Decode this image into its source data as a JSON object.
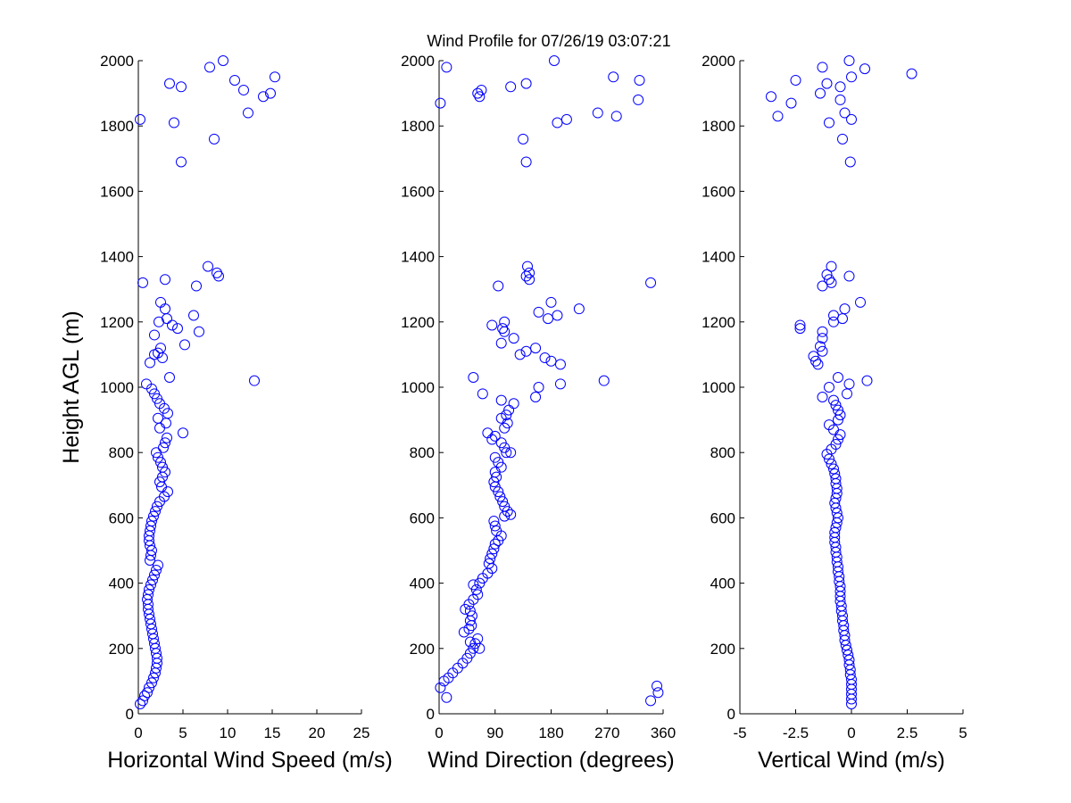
{
  "title": "Wind Profile for  07/26/19 03:07:21",
  "chart_data": [
    {
      "type": "scatter",
      "xlabel": "Horizontal Wind Speed (m/s)",
      "ylabel": "Height AGL (m)",
      "xlim": [
        0,
        25
      ],
      "ylim": [
        0,
        2000
      ],
      "xticks": [
        0,
        5,
        10,
        15,
        20,
        25
      ],
      "xtick_labels": [
        "0",
        "5",
        "10",
        "15",
        "20",
        "25"
      ],
      "yticks": [
        0,
        200,
        400,
        600,
        800,
        1000,
        1200,
        1400,
        1600,
        1800,
        2000
      ],
      "ytick_labels": [
        "0",
        "200",
        "400",
        "600",
        "800",
        "1000",
        "1200",
        "1400",
        "1600",
        "1800",
        "2000"
      ],
      "points": [
        [
          0.2,
          30
        ],
        [
          0.5,
          40
        ],
        [
          0.7,
          55
        ],
        [
          1.0,
          65
        ],
        [
          1.2,
          80
        ],
        [
          1.5,
          95
        ],
        [
          1.7,
          110
        ],
        [
          1.9,
          125
        ],
        [
          2.0,
          140
        ],
        [
          2.1,
          155
        ],
        [
          2.1,
          170
        ],
        [
          2.0,
          185
        ],
        [
          1.9,
          200
        ],
        [
          1.8,
          215
        ],
        [
          1.7,
          230
        ],
        [
          1.6,
          245
        ],
        [
          1.5,
          260
        ],
        [
          1.4,
          275
        ],
        [
          1.3,
          290
        ],
        [
          1.2,
          305
        ],
        [
          1.1,
          320
        ],
        [
          1.1,
          335
        ],
        [
          1.0,
          350
        ],
        [
          1.1,
          365
        ],
        [
          1.2,
          380
        ],
        [
          1.4,
          395
        ],
        [
          1.6,
          410
        ],
        [
          1.8,
          425
        ],
        [
          2.0,
          440
        ],
        [
          2.2,
          455
        ],
        [
          1.3,
          470
        ],
        [
          1.4,
          485
        ],
        [
          1.5,
          500
        ],
        [
          1.3,
          515
        ],
        [
          1.2,
          530
        ],
        [
          1.2,
          545
        ],
        [
          1.3,
          560
        ],
        [
          1.4,
          575
        ],
        [
          1.5,
          590
        ],
        [
          1.7,
          605
        ],
        [
          1.9,
          620
        ],
        [
          2.1,
          635
        ],
        [
          2.4,
          650
        ],
        [
          2.9,
          665
        ],
        [
          3.3,
          680
        ],
        [
          2.6,
          695
        ],
        [
          2.4,
          710
        ],
        [
          2.7,
          725
        ],
        [
          3.0,
          740
        ],
        [
          2.7,
          755
        ],
        [
          2.5,
          770
        ],
        [
          2.2,
          785
        ],
        [
          2.0,
          800
        ],
        [
          2.8,
          815
        ],
        [
          3.0,
          830
        ],
        [
          3.2,
          845
        ],
        [
          5.0,
          860
        ],
        [
          2.4,
          875
        ],
        [
          3.1,
          890
        ],
        [
          2.2,
          905
        ],
        [
          3.3,
          920
        ],
        [
          2.9,
          935
        ],
        [
          2.4,
          950
        ],
        [
          2.1,
          965
        ],
        [
          1.8,
          980
        ],
        [
          1.5,
          995
        ],
        [
          0.9,
          1010
        ],
        [
          3.5,
          1030
        ],
        [
          13.0,
          1020
        ],
        [
          2.7,
          1090
        ],
        [
          1.3,
          1075
        ],
        [
          2.2,
          1105
        ],
        [
          1.8,
          1100
        ],
        [
          2.5,
          1120
        ],
        [
          5.2,
          1130
        ],
        [
          1.8,
          1160
        ],
        [
          6.8,
          1170
        ],
        [
          4.4,
          1180
        ],
        [
          3.8,
          1190
        ],
        [
          2.3,
          1200
        ],
        [
          3.2,
          1210
        ],
        [
          6.2,
          1220
        ],
        [
          3.0,
          1240
        ],
        [
          2.5,
          1260
        ],
        [
          6.5,
          1310
        ],
        [
          0.5,
          1320
        ],
        [
          3.0,
          1330
        ],
        [
          9.0,
          1340
        ],
        [
          8.8,
          1350
        ],
        [
          7.8,
          1370
        ],
        [
          4.8,
          1690
        ],
        [
          8.5,
          1760
        ],
        [
          4.0,
          1810
        ],
        [
          0.2,
          1820
        ],
        [
          12.3,
          1840
        ],
        [
          14.0,
          1890
        ],
        [
          14.8,
          1900
        ],
        [
          11.8,
          1910
        ],
        [
          4.8,
          1920
        ],
        [
          3.5,
          1930
        ],
        [
          10.8,
          1940
        ],
        [
          15.3,
          1950
        ],
        [
          8.0,
          1980
        ],
        [
          9.5,
          2000
        ]
      ]
    },
    {
      "type": "scatter",
      "xlabel": "Wind Direction (degrees)",
      "ylabel": "",
      "xlim": [
        0,
        360
      ],
      "ylim": [
        0,
        2000
      ],
      "xticks": [
        0,
        90,
        180,
        270,
        360
      ],
      "xtick_labels": [
        "0",
        "90",
        "180",
        "270",
        "360"
      ],
      "yticks": [
        0,
        200,
        400,
        600,
        800,
        1000,
        1200,
        1400,
        1600,
        1800,
        2000
      ],
      "ytick_labels": [
        "0",
        "200",
        "400",
        "600",
        "800",
        "1000",
        "1200",
        "1400",
        "1600",
        "1800",
        "2000"
      ],
      "points": [
        [
          12,
          50
        ],
        [
          2,
          80
        ],
        [
          340,
          40
        ],
        [
          352,
          65
        ],
        [
          350,
          85
        ],
        [
          8,
          100
        ],
        [
          15,
          110
        ],
        [
          22,
          125
        ],
        [
          30,
          140
        ],
        [
          38,
          155
        ],
        [
          45,
          170
        ],
        [
          50,
          185
        ],
        [
          55,
          200
        ],
        [
          65,
          200
        ],
        [
          58,
          215
        ],
        [
          50,
          220
        ],
        [
          62,
          230
        ],
        [
          40,
          250
        ],
        [
          48,
          260
        ],
        [
          52,
          270
        ],
        [
          50,
          285
        ],
        [
          53,
          300
        ],
        [
          50,
          315
        ],
        [
          42,
          320
        ],
        [
          48,
          335
        ],
        [
          55,
          350
        ],
        [
          62,
          365
        ],
        [
          60,
          380
        ],
        [
          55,
          395
        ],
        [
          65,
          400
        ],
        [
          70,
          415
        ],
        [
          78,
          430
        ],
        [
          85,
          445
        ],
        [
          80,
          460
        ],
        [
          82,
          475
        ],
        [
          85,
          490
        ],
        [
          88,
          505
        ],
        [
          90,
          520
        ],
        [
          95,
          530
        ],
        [
          100,
          545
        ],
        [
          92,
          560
        ],
        [
          90,
          575
        ],
        [
          88,
          590
        ],
        [
          105,
          605
        ],
        [
          115,
          610
        ],
        [
          110,
          620
        ],
        [
          105,
          635
        ],
        [
          102,
          650
        ],
        [
          98,
          665
        ],
        [
          95,
          680
        ],
        [
          90,
          695
        ],
        [
          88,
          710
        ],
        [
          92,
          725
        ],
        [
          90,
          740
        ],
        [
          100,
          755
        ],
        [
          95,
          770
        ],
        [
          90,
          785
        ],
        [
          108,
          800
        ],
        [
          115,
          800
        ],
        [
          105,
          815
        ],
        [
          100,
          830
        ],
        [
          85,
          840
        ],
        [
          90,
          850
        ],
        [
          78,
          860
        ],
        [
          105,
          875
        ],
        [
          110,
          890
        ],
        [
          100,
          905
        ],
        [
          108,
          915
        ],
        [
          112,
          930
        ],
        [
          120,
          950
        ],
        [
          100,
          960
        ],
        [
          70,
          980
        ],
        [
          155,
          970
        ],
        [
          160,
          1000
        ],
        [
          195,
          1010
        ],
        [
          55,
          1030
        ],
        [
          265,
          1020
        ],
        [
          195,
          1070
        ],
        [
          180,
          1080
        ],
        [
          170,
          1090
        ],
        [
          130,
          1100
        ],
        [
          140,
          1110
        ],
        [
          155,
          1120
        ],
        [
          100,
          1135
        ],
        [
          120,
          1150
        ],
        [
          105,
          1170
        ],
        [
          102,
          1180
        ],
        [
          85,
          1190
        ],
        [
          105,
          1200
        ],
        [
          175,
          1210
        ],
        [
          190,
          1220
        ],
        [
          160,
          1230
        ],
        [
          225,
          1240
        ],
        [
          180,
          1260
        ],
        [
          95,
          1310
        ],
        [
          340,
          1320
        ],
        [
          145,
          1330
        ],
        [
          140,
          1340
        ],
        [
          145,
          1350
        ],
        [
          142,
          1370
        ],
        [
          140,
          1690
        ],
        [
          135,
          1760
        ],
        [
          190,
          1810
        ],
        [
          205,
          1820
        ],
        [
          255,
          1840
        ],
        [
          285,
          1830
        ],
        [
          2,
          1870
        ],
        [
          320,
          1880
        ],
        [
          65,
          1890
        ],
        [
          62,
          1900
        ],
        [
          68,
          1910
        ],
        [
          115,
          1920
        ],
        [
          140,
          1930
        ],
        [
          322,
          1940
        ],
        [
          280,
          1950
        ],
        [
          12,
          1980
        ],
        [
          185,
          2000
        ]
      ]
    },
    {
      "type": "scatter",
      "xlabel": "Vertical Wind (m/s)",
      "ylabel": "",
      "xlim": [
        -5,
        5
      ],
      "ylim": [
        0,
        2000
      ],
      "xticks": [
        -5,
        -2.5,
        0,
        2.5,
        5
      ],
      "xtick_labels": [
        "-5",
        "-2.5",
        "0",
        "2.5",
        "5"
      ],
      "yticks": [
        0,
        200,
        400,
        600,
        800,
        1000,
        1200,
        1400,
        1600,
        1800,
        2000
      ],
      "ytick_labels": [
        "0",
        "200",
        "400",
        "600",
        "800",
        "1000",
        "1200",
        "1400",
        "1600",
        "1800",
        "2000"
      ],
      "points": [
        [
          0.0,
          30
        ],
        [
          0.0,
          45
        ],
        [
          0.0,
          60
        ],
        [
          0.0,
          75
        ],
        [
          0.0,
          90
        ],
        [
          0.0,
          105
        ],
        [
          -0.05,
          120
        ],
        [
          -0.05,
          135
        ],
        [
          -0.1,
          150
        ],
        [
          -0.1,
          165
        ],
        [
          -0.15,
          180
        ],
        [
          -0.2,
          195
        ],
        [
          -0.25,
          210
        ],
        [
          -0.3,
          225
        ],
        [
          -0.3,
          240
        ],
        [
          -0.35,
          255
        ],
        [
          -0.35,
          270
        ],
        [
          -0.4,
          285
        ],
        [
          -0.4,
          300
        ],
        [
          -0.45,
          315
        ],
        [
          -0.45,
          330
        ],
        [
          -0.5,
          345
        ],
        [
          -0.5,
          360
        ],
        [
          -0.5,
          375
        ],
        [
          -0.5,
          390
        ],
        [
          -0.55,
          405
        ],
        [
          -0.55,
          420
        ],
        [
          -0.6,
          435
        ],
        [
          -0.6,
          450
        ],
        [
          -0.65,
          465
        ],
        [
          -0.65,
          480
        ],
        [
          -0.7,
          495
        ],
        [
          -0.7,
          510
        ],
        [
          -0.75,
          525
        ],
        [
          -0.75,
          540
        ],
        [
          -0.75,
          555
        ],
        [
          -0.7,
          570
        ],
        [
          -0.65,
          585
        ],
        [
          -0.6,
          600
        ],
        [
          -0.65,
          615
        ],
        [
          -0.7,
          630
        ],
        [
          -0.75,
          645
        ],
        [
          -0.7,
          660
        ],
        [
          -0.65,
          675
        ],
        [
          -0.65,
          690
        ],
        [
          -0.7,
          705
        ],
        [
          -0.7,
          720
        ],
        [
          -0.75,
          735
        ],
        [
          -0.8,
          750
        ],
        [
          -0.9,
          765
        ],
        [
          -1.0,
          780
        ],
        [
          -1.1,
          795
        ],
        [
          -0.9,
          810
        ],
        [
          -0.7,
          825
        ],
        [
          -0.6,
          840
        ],
        [
          -0.5,
          855
        ],
        [
          -0.8,
          870
        ],
        [
          -1.0,
          885
        ],
        [
          -0.6,
          900
        ],
        [
          -0.5,
          915
        ],
        [
          -0.6,
          930
        ],
        [
          -0.7,
          945
        ],
        [
          -0.8,
          960
        ],
        [
          -1.3,
          970
        ],
        [
          -0.2,
          980
        ],
        [
          -1.0,
          1000
        ],
        [
          -0.1,
          1010
        ],
        [
          -0.6,
          1030
        ],
        [
          0.7,
          1020
        ],
        [
          -1.5,
          1070
        ],
        [
          -1.6,
          1080
        ],
        [
          -1.7,
          1095
        ],
        [
          -1.3,
          1110
        ],
        [
          -1.4,
          1125
        ],
        [
          -1.3,
          1150
        ],
        [
          -1.3,
          1170
        ],
        [
          -2.3,
          1180
        ],
        [
          -2.3,
          1190
        ],
        [
          -0.8,
          1200
        ],
        [
          -0.4,
          1210
        ],
        [
          -0.8,
          1220
        ],
        [
          -0.3,
          1240
        ],
        [
          0.4,
          1260
        ],
        [
          -1.3,
          1310
        ],
        [
          -0.9,
          1320
        ],
        [
          -1.0,
          1330
        ],
        [
          -1.1,
          1345
        ],
        [
          -0.1,
          1340
        ],
        [
          -0.9,
          1370
        ],
        [
          -0.05,
          1690
        ],
        [
          -0.4,
          1760
        ],
        [
          -1.0,
          1810
        ],
        [
          0.0,
          1820
        ],
        [
          -0.3,
          1840
        ],
        [
          -3.3,
          1830
        ],
        [
          -2.7,
          1870
        ],
        [
          -0.5,
          1880
        ],
        [
          -3.6,
          1890
        ],
        [
          -1.4,
          1900
        ],
        [
          -0.5,
          1920
        ],
        [
          -1.1,
          1930
        ],
        [
          -2.5,
          1940
        ],
        [
          0.0,
          1950
        ],
        [
          2.7,
          1960
        ],
        [
          0.6,
          1975
        ],
        [
          -1.3,
          1980
        ],
        [
          -0.1,
          2000
        ]
      ]
    }
  ]
}
